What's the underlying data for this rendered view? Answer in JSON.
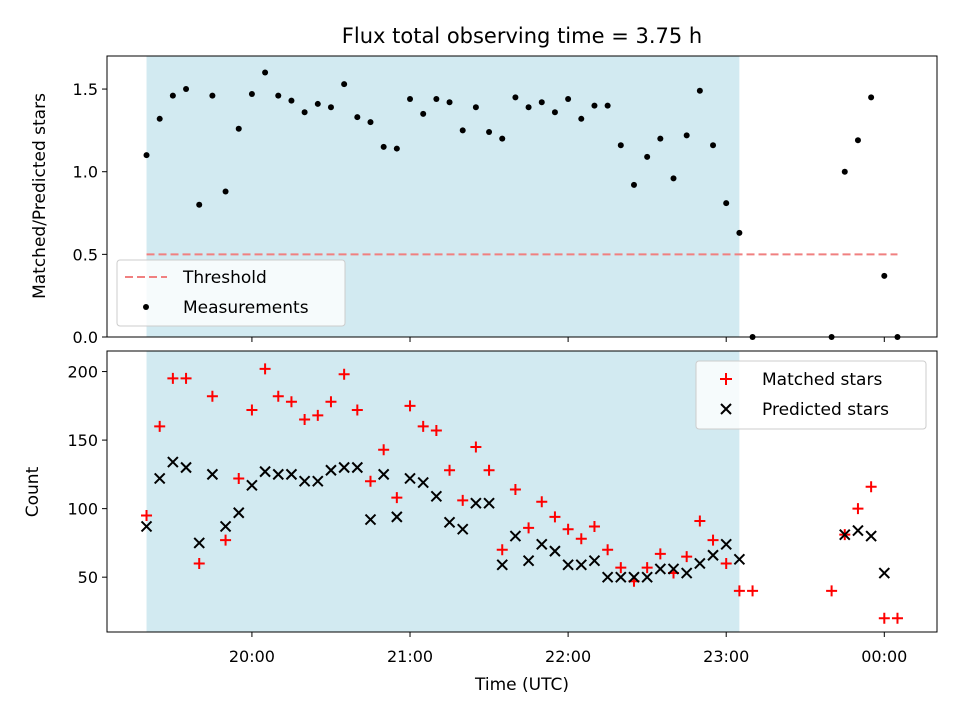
{
  "figure": {
    "title": "Flux total observing time = 3.75 h",
    "xlabel": "Time (UTC)"
  },
  "colors": {
    "shade": "#add8e6",
    "matched": "#ff0000",
    "predicted": "#000000",
    "ratio": "#000000",
    "threshold": "#f08080"
  },
  "chart_data": [
    {
      "type": "scatter",
      "panel": "top",
      "ylabel": "Matched/Predicted stars",
      "ylim": [
        0,
        1.7
      ],
      "yticks": [
        "0.0",
        "0.5",
        "1.0",
        "1.5"
      ],
      "xlim": [
        "19:05",
        "00:20"
      ],
      "shaded_interval": [
        "19:20",
        "23:05"
      ],
      "threshold": {
        "name": "Threshold",
        "value": 0.5,
        "style": "dashed",
        "x_range": [
          "19:20",
          "00:05"
        ]
      },
      "legend": {
        "placement": "lower-left",
        "entries": [
          "Threshold",
          "Measurements"
        ]
      },
      "series": [
        {
          "name": "Measurements",
          "x": [
            "19:20",
            "19:25",
            "19:30",
            "19:35",
            "19:40",
            "19:45",
            "19:50",
            "19:55",
            "20:00",
            "20:05",
            "20:10",
            "20:15",
            "20:20",
            "20:25",
            "20:30",
            "20:35",
            "20:40",
            "20:45",
            "20:50",
            "20:55",
            "21:00",
            "21:05",
            "21:10",
            "21:15",
            "21:20",
            "21:25",
            "21:30",
            "21:35",
            "21:40",
            "21:45",
            "21:50",
            "21:55",
            "22:00",
            "22:05",
            "22:10",
            "22:15",
            "22:20",
            "22:25",
            "22:30",
            "22:35",
            "22:40",
            "22:45",
            "22:50",
            "22:55",
            "23:00",
            "23:05",
            "23:10",
            "23:40",
            "23:45",
            "23:50",
            "23:55",
            "00:00",
            "00:05"
          ],
          "y": [
            1.1,
            1.32,
            1.46,
            1.5,
            0.8,
            1.46,
            0.88,
            1.26,
            1.47,
            1.6,
            1.46,
            1.43,
            1.36,
            1.41,
            1.39,
            1.53,
            1.33,
            1.3,
            1.15,
            1.14,
            1.44,
            1.35,
            1.44,
            1.42,
            1.25,
            1.39,
            1.24,
            1.2,
            1.45,
            1.39,
            1.42,
            1.36,
            1.44,
            1.32,
            1.4,
            1.4,
            1.16,
            0.92,
            1.09,
            1.2,
            0.96,
            1.22,
            1.49,
            1.16,
            0.81,
            0.63,
            0.0,
            0.0,
            1.0,
            1.19,
            1.45,
            0.37,
            0.0
          ]
        }
      ]
    },
    {
      "type": "scatter",
      "panel": "bottom",
      "ylabel": "Count",
      "ylim": [
        10,
        215
      ],
      "yticks": [
        "50",
        "100",
        "150",
        "200"
      ],
      "xticks": [
        "20:00",
        "21:00",
        "22:00",
        "23:00",
        "00:00"
      ],
      "xlim": [
        "19:05",
        "00:20"
      ],
      "shaded_interval": [
        "19:20",
        "23:05"
      ],
      "legend": {
        "placement": "upper-right",
        "entries": [
          "Matched stars",
          "Predicted stars"
        ]
      },
      "series": [
        {
          "name": "Matched stars",
          "marker": "plus",
          "x": [
            "19:20",
            "19:25",
            "19:30",
            "19:35",
            "19:40",
            "19:45",
            "19:50",
            "19:55",
            "20:00",
            "20:05",
            "20:10",
            "20:15",
            "20:20",
            "20:25",
            "20:30",
            "20:35",
            "20:40",
            "20:45",
            "20:50",
            "20:55",
            "21:00",
            "21:05",
            "21:10",
            "21:15",
            "21:20",
            "21:25",
            "21:30",
            "21:35",
            "21:40",
            "21:45",
            "21:50",
            "21:55",
            "22:00",
            "22:05",
            "22:10",
            "22:15",
            "22:20",
            "22:25",
            "22:30",
            "22:35",
            "22:40",
            "22:45",
            "22:50",
            "22:55",
            "23:00",
            "23:05",
            "23:10",
            "23:40",
            "23:45",
            "23:50",
            "23:55",
            "00:00",
            "00:05"
          ],
          "y": [
            95,
            160,
            195,
            195,
            60,
            182,
            77,
            122,
            172,
            202,
            182,
            178,
            165,
            168,
            178,
            198,
            172,
            120,
            143,
            108,
            175,
            160,
            157,
            128,
            106,
            145,
            128,
            70,
            114,
            86,
            105,
            94,
            85,
            78,
            87,
            70,
            57,
            47,
            57,
            67,
            53,
            65,
            91,
            77,
            60,
            40,
            40,
            40,
            81,
            100,
            116,
            20,
            20
          ]
        },
        {
          "name": "Predicted stars",
          "marker": "x",
          "x": [
            "19:20",
            "19:25",
            "19:30",
            "19:35",
            "19:40",
            "19:45",
            "19:50",
            "19:55",
            "20:00",
            "20:05",
            "20:10",
            "20:15",
            "20:20",
            "20:25",
            "20:30",
            "20:35",
            "20:40",
            "20:45",
            "20:50",
            "20:55",
            "21:00",
            "21:05",
            "21:10",
            "21:15",
            "21:20",
            "21:25",
            "21:30",
            "21:35",
            "21:40",
            "21:45",
            "21:50",
            "21:55",
            "22:00",
            "22:05",
            "22:10",
            "22:15",
            "22:20",
            "22:25",
            "22:30",
            "22:35",
            "22:40",
            "22:45",
            "22:50",
            "22:55",
            "23:00",
            "23:05",
            "23:45",
            "23:50",
            "23:55",
            "00:00"
          ],
          "y": [
            87,
            122,
            134,
            130,
            75,
            125,
            87,
            97,
            117,
            127,
            125,
            125,
            120,
            120,
            128,
            130,
            130,
            92,
            125,
            94,
            122,
            119,
            109,
            90,
            85,
            104,
            104,
            59,
            80,
            62,
            74,
            69,
            59,
            59,
            62,
            50,
            50,
            50,
            50,
            56,
            56,
            53,
            60,
            66,
            74,
            63,
            81,
            84,
            80,
            53
          ]
        }
      ]
    }
  ]
}
